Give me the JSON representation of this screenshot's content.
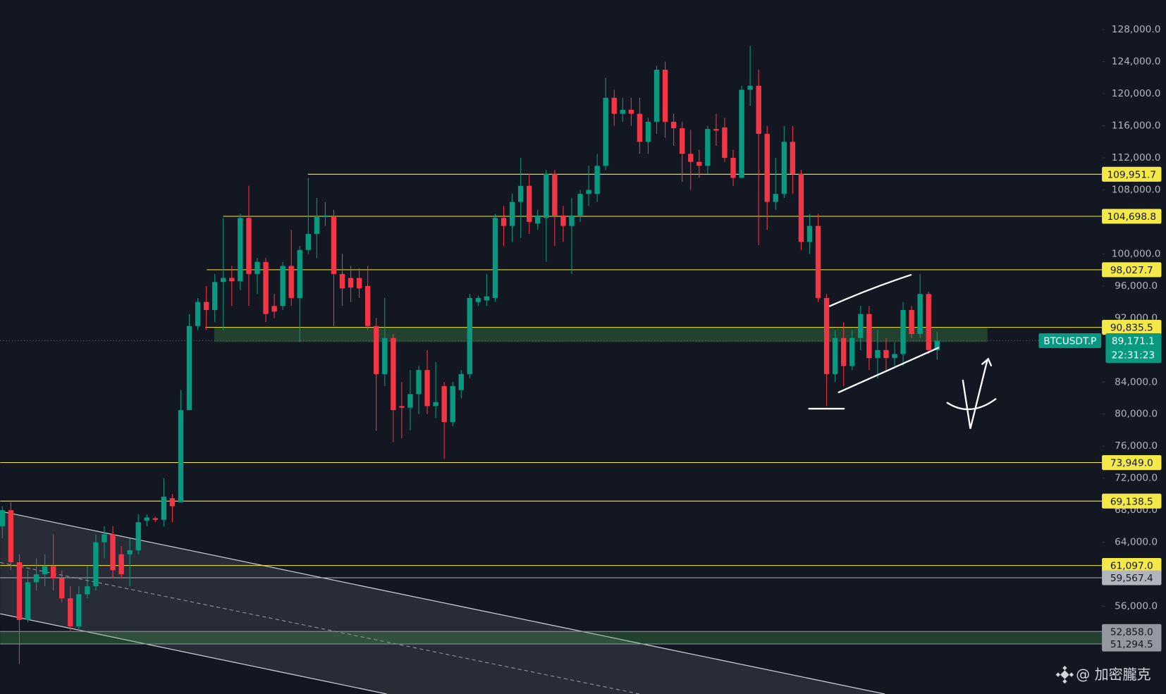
{
  "chart_data": {
    "type": "candlestick",
    "up_color": "#089981",
    "down_color": "#f23645",
    "ylim": [
      45050,
      131710
    ],
    "yticks": [
      {
        "value": 128000,
        "label": "128,000.0"
      },
      {
        "value": 124000,
        "label": "124,000.0"
      },
      {
        "value": 120000,
        "label": "120,000.0"
      },
      {
        "value": 116000,
        "label": "116,000.0"
      },
      {
        "value": 112000,
        "label": "112,000.0"
      },
      {
        "value": 108000,
        "label": "108,000.0"
      },
      {
        "value": 100000,
        "label": "100,000.0"
      },
      {
        "value": 96000,
        "label": "96,000.0"
      },
      {
        "value": 92000,
        "label": "92,000.0"
      },
      {
        "value": 84000,
        "label": "84,000.0"
      },
      {
        "value": 80000,
        "label": "80,000.0"
      },
      {
        "value": 76000,
        "label": "76,000.0"
      },
      {
        "value": 72000,
        "label": "72,000.0"
      },
      {
        "value": 68000,
        "label": "68,000.0"
      },
      {
        "value": 64000,
        "label": "64,000.0"
      },
      {
        "value": 56000,
        "label": "56,000.0"
      }
    ],
    "open": [
      66000,
      68000,
      61500,
      54300,
      59000,
      60000,
      61000,
      59500,
      57000,
      53500,
      57500,
      58500,
      64000,
      65000,
      62500,
      62500,
      63000,
      66700,
      67000,
      66800,
      69500,
      69000,
      80500,
      91000,
      94000,
      93000,
      96500,
      97000,
      96600,
      104500,
      97500,
      99000,
      93500,
      93500,
      98500,
      94500,
      100500,
      102500,
      104700,
      104700,
      97500,
      97000,
      97000,
      96000,
      91000,
      85000,
      89500,
      81000,
      80800,
      82500,
      85500,
      81000,
      83500,
      79000,
      83000,
      85000,
      94000,
      94200,
      94500,
      104500,
      103500,
      106500,
      108500,
      103800,
      104500,
      110000,
      104800,
      103500,
      104800,
      107500,
      107500,
      111000,
      119500,
      117500,
      118000,
      117500,
      114000,
      116500,
      123000,
      116500,
      115700,
      112500,
      111500,
      111000,
      115600,
      115800,
      112000,
      109500,
      120500,
      121000,
      115000,
      106500,
      107500,
      114000,
      110000,
      101500,
      103500,
      94500,
      85000,
      89500,
      86000,
      89500,
      92500,
      87000,
      88000,
      87000,
      87500,
      93000,
      90000,
      95000,
      88000
    ],
    "high": [
      68500,
      69000,
      62500,
      60500,
      62000,
      62500,
      65000,
      60500,
      58500,
      58500,
      61000,
      65000,
      66000,
      66000,
      63500,
      64500,
      67500,
      67500,
      67200,
      72000,
      70000,
      83000,
      92500,
      94500,
      96000,
      97500,
      104500,
      98500,
      105000,
      108500,
      99500,
      99500,
      95000,
      99000,
      103000,
      101000,
      109500,
      107000,
      106500,
      105500,
      100000,
      98500,
      98200,
      98500,
      92000,
      94500,
      90000,
      84000,
      85500,
      86000,
      88000,
      86500,
      84000,
      84000,
      85500,
      95000,
      94800,
      97500,
      105000,
      106000,
      107500,
      112000,
      110000,
      105500,
      110500,
      110500,
      106000,
      107000,
      108000,
      111000,
      112500,
      122000,
      120500,
      119500,
      119500,
      119500,
      117000,
      123500,
      124000,
      117500,
      116500,
      115500,
      113000,
      116000,
      117500,
      117000,
      113000,
      121000,
      126000,
      123000,
      116000,
      112000,
      116000,
      116000,
      110500,
      105000,
      105000,
      95000,
      90500,
      91500,
      90500,
      93500,
      93500,
      90500,
      89500,
      89000,
      94000,
      93500,
      97500,
      95300,
      90300
    ],
    "low": [
      64500,
      60500,
      48800,
      54000,
      58000,
      58500,
      58000,
      56500,
      52800,
      53000,
      57000,
      58000,
      62000,
      59500,
      59500,
      58500,
      62500,
      66000,
      66500,
      66000,
      66500,
      69000,
      80500,
      90500,
      90500,
      91500,
      90500,
      93500,
      95500,
      93500,
      95000,
      91500,
      92000,
      93000,
      93500,
      89000,
      100000,
      99500,
      103500,
      91000,
      93500,
      94000,
      94500,
      90500,
      77900,
      83500,
      76500,
      77000,
      78000,
      80000,
      80000,
      79500,
      74400,
      78500,
      82000,
      84500,
      93500,
      93500,
      94000,
      101000,
      101500,
      102000,
      102500,
      103000,
      99000,
      101000,
      101500,
      97500,
      104000,
      106000,
      106500,
      110500,
      116000,
      116500,
      116000,
      112500,
      112500,
      115000,
      114500,
      113500,
      109000,
      108000,
      109500,
      110000,
      113500,
      111500,
      108500,
      109500,
      118500,
      101100,
      103000,
      105500,
      107000,
      107500,
      100500,
      100000,
      94000,
      81000,
      84000,
      83500,
      85500,
      88000,
      85500,
      84500,
      85500,
      86000,
      86000,
      89500,
      89500,
      87500,
      86800
    ],
    "close": [
      68000,
      61500,
      54300,
      59000,
      60000,
      61000,
      59500,
      57000,
      53500,
      57500,
      58500,
      64000,
      65000,
      60500,
      60000,
      63000,
      66500,
      67100,
      66800,
      69700,
      68500,
      80500,
      91000,
      94000,
      93000,
      96500,
      97000,
      96600,
      104500,
      97500,
      99000,
      92500,
      92800,
      98500,
      94500,
      100500,
      102500,
      104700,
      104800,
      97500,
      95700,
      95800,
      95700,
      91000,
      85000,
      89500,
      80500,
      80800,
      82500,
      85500,
      81000,
      81500,
      79000,
      83500,
      85000,
      94500,
      94500,
      94700,
      104500,
      103500,
      106500,
      108500,
      104000,
      104800,
      110000,
      104800,
      103500,
      104800,
      107500,
      108000,
      111000,
      119500,
      117500,
      118000,
      117500,
      114000,
      116500,
      123000,
      116500,
      115700,
      112500,
      111500,
      111000,
      115600,
      115400,
      112000,
      109500,
      120500,
      121000,
      115000,
      106500,
      107500,
      114000,
      110000,
      101500,
      103500,
      94500,
      85000,
      89500,
      86000,
      89500,
      92500,
      87000,
      88000,
      87000,
      87500,
      93000,
      90000,
      95000,
      88000,
      89171.1
    ],
    "levels": [
      {
        "value": 109951.7,
        "label": "109,951.7",
        "color": "#f5e94a"
      },
      {
        "value": 104698.8,
        "label": "104,698.8",
        "color": "#f5e94a"
      },
      {
        "value": 98027.7,
        "label": "98,027.7",
        "color": "#f5e94a"
      },
      {
        "value": 90835.5,
        "label": "90,835.5",
        "color": "#f5e94a"
      },
      {
        "value": 73949.0,
        "label": "73,949.0",
        "color": "#f5e94a"
      },
      {
        "value": 69138.5,
        "label": "69,138.5",
        "color": "#f5e94a"
      },
      {
        "value": 61097.0,
        "label": "61,097.0",
        "color": "#f5e94a"
      },
      {
        "value": 59567.4,
        "label": "59,567.4",
        "color": "#b2b5be"
      },
      {
        "value": 52858.0,
        "label": "52,858.0",
        "color": "#9598a1"
      },
      {
        "value": 51294.5,
        "label": "51,294.5",
        "color": "#9598a1"
      }
    ],
    "zones": [
      {
        "from": 89000,
        "to": 90835.5,
        "color": "rgba(76,175,80,0.28)"
      },
      {
        "from": 51294.5,
        "to": 52858.0,
        "color": "rgba(76,175,80,0.28)"
      }
    ],
    "last_price": {
      "name": "BTCUSDT.P",
      "value": 89171.1,
      "label": "89,171.1",
      "countdown": "22:31:23",
      "color": "#089981"
    },
    "watermark": "@ 加密朧克"
  }
}
